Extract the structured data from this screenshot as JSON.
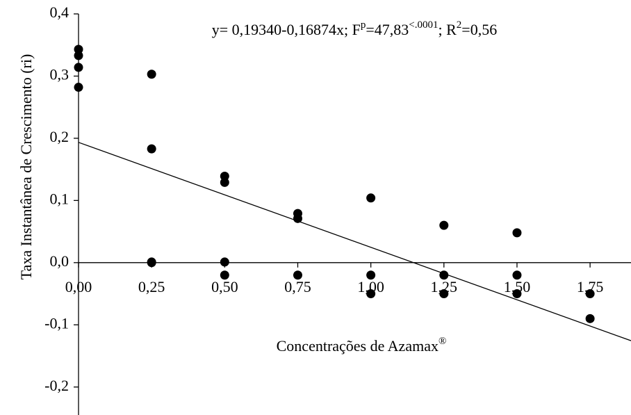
{
  "chart_data": {
    "type": "scatter",
    "annotation": [
      "y= 0,19340-0,16874x; F",
      "p",
      "=47,83",
      "<.0001",
      "; R",
      "2",
      "=0,56"
    ],
    "x_label": [
      "Concentrações de Azamax",
      "®"
    ],
    "y_label": "Taxa Instantânea de Crescimento (ri)",
    "series": [
      {
        "color": "#000000",
        "x": [
          0,
          0,
          0,
          0,
          0.25,
          0.25,
          0.25,
          0.25,
          0.5,
          0.5,
          0.5,
          0.5,
          0.75,
          0.75,
          0.75,
          1.0,
          1.0,
          1.0,
          1.25,
          1.25,
          1.25,
          1.5,
          1.5,
          1.5,
          1.75,
          1.75
        ],
        "values": [
          0.343,
          0.333,
          0.314,
          0.282,
          0.303,
          0.183,
          0.001,
          0.0,
          0.139,
          0.129,
          0.001,
          -0.02,
          0.079,
          0.071,
          -0.02,
          0.104,
          -0.02,
          -0.05,
          0.06,
          -0.02,
          -0.05,
          0.048,
          -0.02,
          -0.05,
          -0.05,
          -0.09
        ]
      }
    ],
    "regression": {
      "intercept": 0.1934,
      "slope": -0.16874
    },
    "xlim": [
      0,
      1.89
    ],
    "ylim": [
      -0.245,
      0.4
    ],
    "xticks": [
      {
        "value": 0,
        "label": "0,00"
      },
      {
        "value": 0.25,
        "label": "0,25"
      },
      {
        "value": 0.5,
        "label": "0,50"
      },
      {
        "value": 0.75,
        "label": "0,75"
      },
      {
        "value": 1.0,
        "label": "1,00"
      },
      {
        "value": 1.25,
        "label": "1,25"
      },
      {
        "value": 1.5,
        "label": "1,50"
      },
      {
        "value": 1.75,
        "label": "1,75"
      }
    ],
    "yticks": [
      {
        "value": -0.2,
        "label": "-0,2"
      },
      {
        "value": -0.1,
        "label": "-0,1"
      },
      {
        "value": 0,
        "label": "0,0"
      },
      {
        "value": 0.1,
        "label": "0,1"
      },
      {
        "value": 0.2,
        "label": "0,2"
      },
      {
        "value": 0.3,
        "label": "0,3"
      },
      {
        "value": 0.4,
        "label": "0,4"
      }
    ]
  }
}
